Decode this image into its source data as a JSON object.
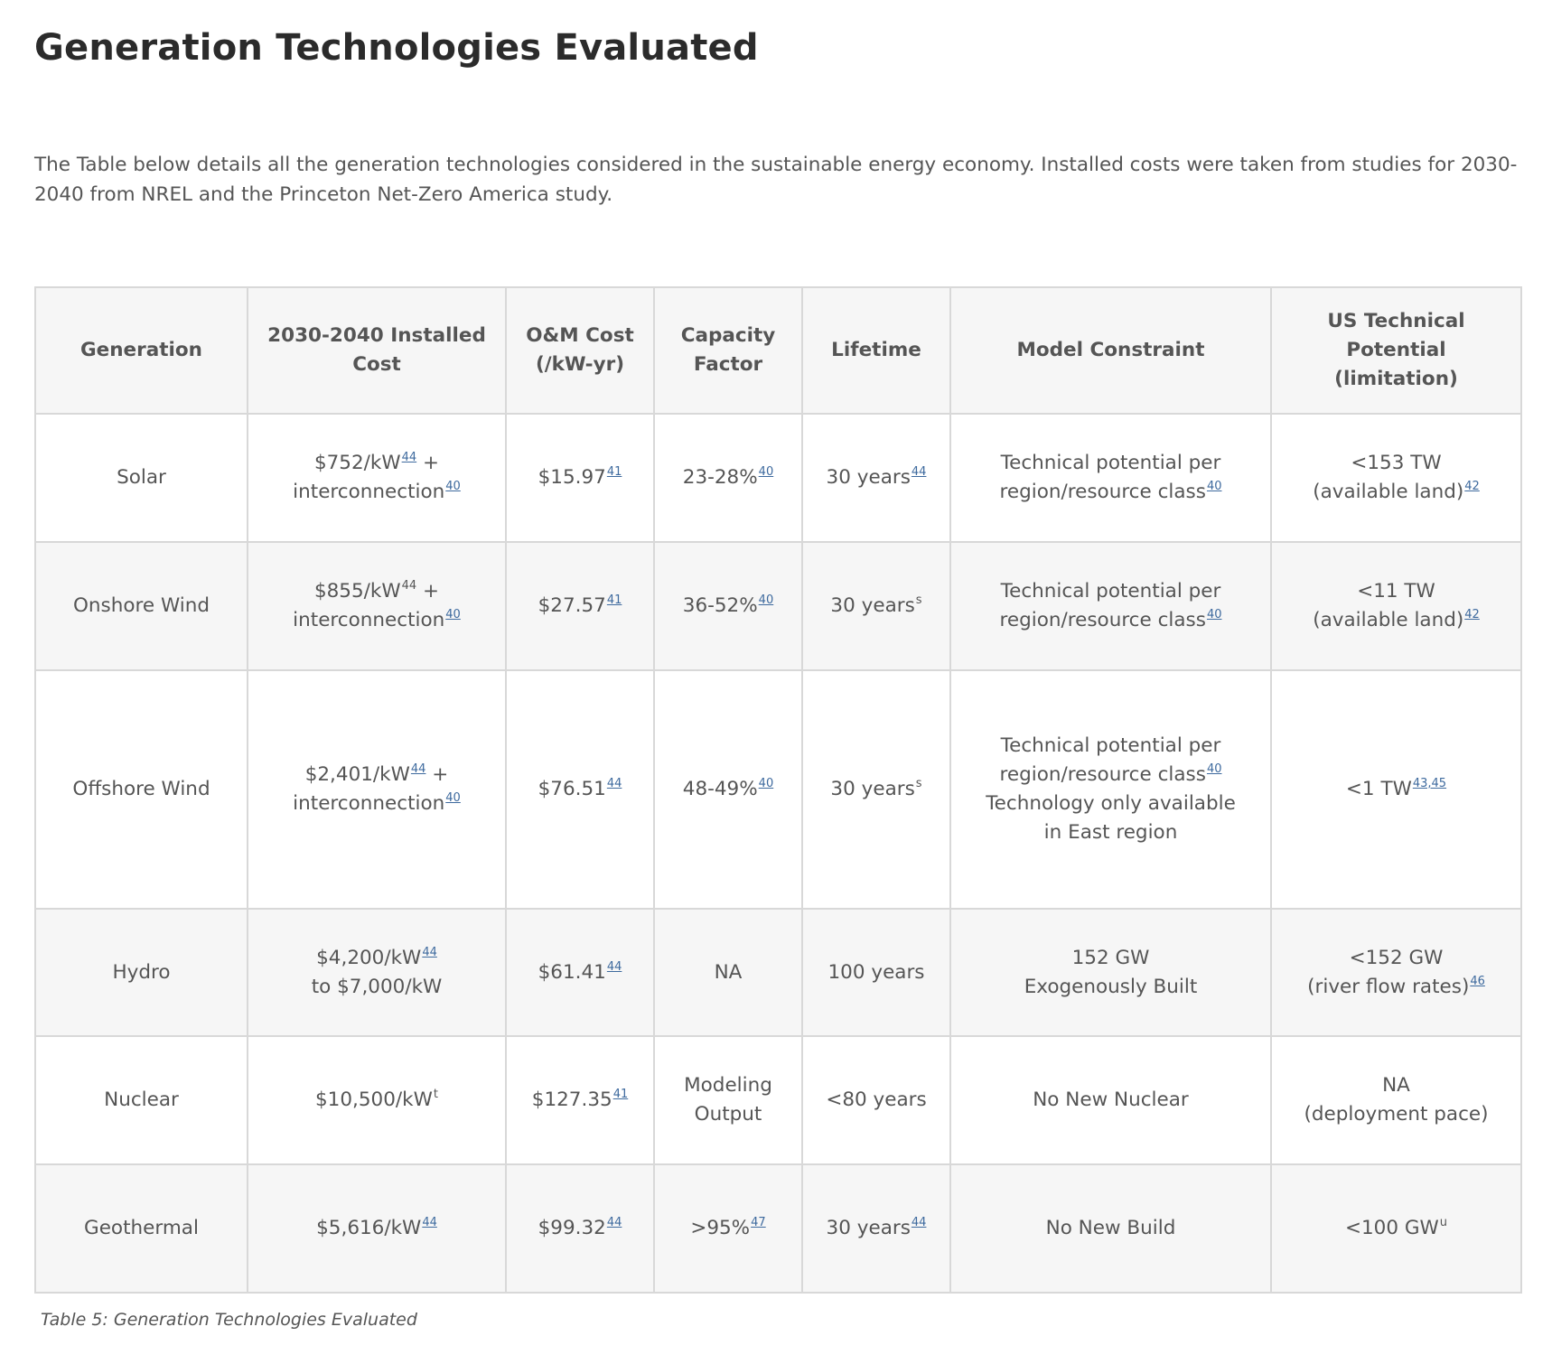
{
  "page_title": "Generation Technologies Evaluated",
  "intro": "The Table below details all the generation technologies considered in the sustainable energy economy. Installed costs were taken from studies for 2030-2040 from NREL and the Princeton Net-Zero America study.",
  "colors": {
    "link": "#3e6a9e",
    "header_bg": "#f6f6f6",
    "stripe_bg": "#f6f6f6",
    "border": "#d8d8d8"
  },
  "table": {
    "headers": [
      [
        "Generation"
      ],
      [
        "2030-2040 Installed",
        "Cost"
      ],
      [
        "O&M Cost",
        "(/kW-yr)"
      ],
      [
        "Capacity",
        "Factor"
      ],
      [
        "Lifetime"
      ],
      [
        "Model Constraint"
      ],
      [
        "US Technical",
        "Potential",
        "(limitation)"
      ]
    ],
    "rows": [
      [
        [
          {
            "t": "Solar"
          }
        ],
        [
          {
            "t": "$752/kW",
            "ref": "44",
            "after": " +"
          },
          {
            "t": "interconnection",
            "ref": "40"
          }
        ],
        [
          {
            "t": "$15.97",
            "ref": "41"
          }
        ],
        [
          {
            "t": "23-28%",
            "ref": "40"
          }
        ],
        [
          {
            "t": "30 years",
            "ref": "44"
          }
        ],
        [
          {
            "t": "Technical potential per"
          },
          {
            "t": "region/resource class",
            "ref": "40"
          }
        ],
        [
          {
            "t": "<153 TW"
          },
          {
            "t": "(available land)",
            "ref": "42"
          }
        ]
      ],
      [
        [
          {
            "t": "Onshore Wind"
          }
        ],
        [
          {
            "t": "$855/kW",
            "note": "44",
            "after": " +"
          },
          {
            "t": "interconnection",
            "ref": "40"
          }
        ],
        [
          {
            "t": "$27.57",
            "ref": "41"
          }
        ],
        [
          {
            "t": "36-52%",
            "ref": "40"
          }
        ],
        [
          {
            "t": "30 years",
            "note": "s"
          }
        ],
        [
          {
            "t": "Technical potential per"
          },
          {
            "t": "region/resource class",
            "ref": "40"
          }
        ],
        [
          {
            "t": "<11 TW"
          },
          {
            "t": "(available land)",
            "ref": "42"
          }
        ]
      ],
      [
        [
          {
            "t": "Offshore Wind"
          }
        ],
        [
          {
            "t": "$2,401/kW",
            "ref": "44",
            "after": " +"
          },
          {
            "t": "interconnection",
            "ref": "40"
          }
        ],
        [
          {
            "t": "$76.51",
            "ref": "44"
          }
        ],
        [
          {
            "t": "48-49%",
            "ref": "40"
          }
        ],
        [
          {
            "t": "30 years",
            "note": "s"
          }
        ],
        [
          {
            "t": "Technical potential per"
          },
          {
            "t": "region/resource class",
            "ref": "40"
          },
          {
            "t": "Technology only available"
          },
          {
            "t": "in East region"
          }
        ],
        [
          {
            "t": "<1 TW",
            "ref": "43,45"
          }
        ]
      ],
      [
        [
          {
            "t": "Hydro"
          }
        ],
        [
          {
            "t": "$4,200/kW",
            "ref": "44"
          },
          {
            "t": "to $7,000/kW"
          }
        ],
        [
          {
            "t": "$61.41",
            "ref": "44"
          }
        ],
        [
          {
            "t": "NA"
          }
        ],
        [
          {
            "t": "100 years"
          }
        ],
        [
          {
            "t": "152 GW"
          },
          {
            "t": "Exogenously Built"
          }
        ],
        [
          {
            "t": "<152 GW"
          },
          {
            "t": "(river flow rates)",
            "ref": "46"
          }
        ]
      ],
      [
        [
          {
            "t": "Nuclear"
          }
        ],
        [
          {
            "t": "$10,500/kW",
            "note": "t"
          }
        ],
        [
          {
            "t": "$127.35",
            "ref": "41"
          }
        ],
        [
          {
            "t": "Modeling"
          },
          {
            "t": "Output"
          }
        ],
        [
          {
            "t": "<80 years"
          }
        ],
        [
          {
            "t": "No New Nuclear"
          }
        ],
        [
          {
            "t": "NA"
          },
          {
            "t": "(deployment pace)"
          }
        ]
      ],
      [
        [
          {
            "t": "Geothermal"
          }
        ],
        [
          {
            "t": "$5,616/kW",
            "ref": "44"
          }
        ],
        [
          {
            "t": "$99.32",
            "ref": "44"
          }
        ],
        [
          {
            "t": ">95%",
            "ref": "47"
          }
        ],
        [
          {
            "t": "30 years",
            "ref": "44"
          }
        ],
        [
          {
            "t": "No New Build"
          }
        ],
        [
          {
            "t": "<100 GW",
            "note": "u"
          }
        ]
      ]
    ]
  },
  "caption": "Table 5: Generation Technologies Evaluated"
}
